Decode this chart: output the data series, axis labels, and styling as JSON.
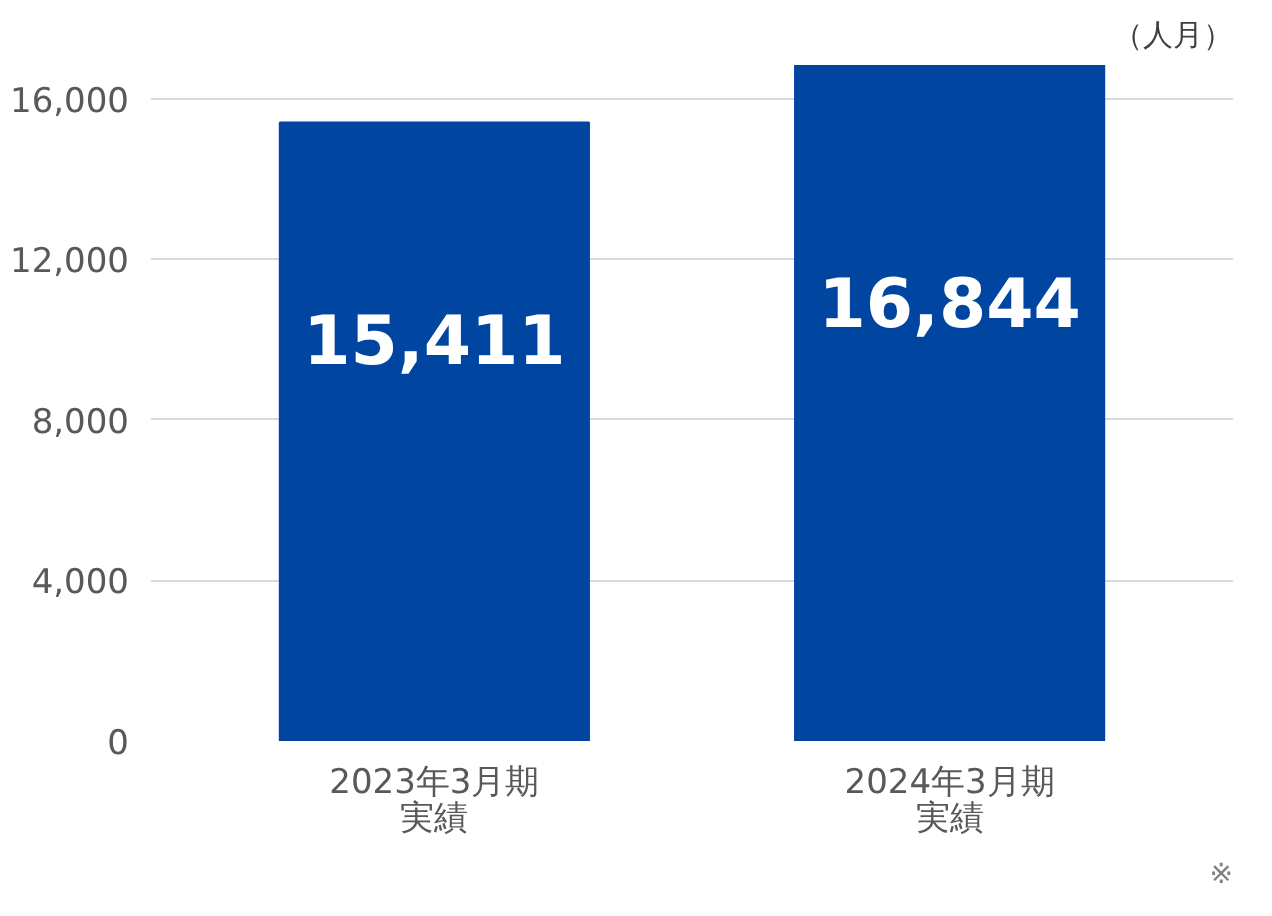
{
  "chart_data": {
    "type": "bar",
    "ylabel": "（人月）",
    "categories": [
      "2023年3月期実績",
      "2024年3月期実績"
    ],
    "series": [
      {
        "color": "#0046a0",
        "values": [
          15411,
          16844
        ],
        "value_labels": [
          "15,411",
          "16,844"
        ]
      }
    ],
    "yticks": [
      0,
      {
        "value": 4000,
        "label": "4,000"
      },
      {
        "value": 8000,
        "label": "8,000"
      },
      {
        "value": 12000,
        "label": "12,000"
      },
      {
        "value": 16000,
        "label": "16,000"
      }
    ],
    "ylim": [
      0,
      16844
    ],
    "grid": "y",
    "annotations": [
      "※"
    ]
  }
}
